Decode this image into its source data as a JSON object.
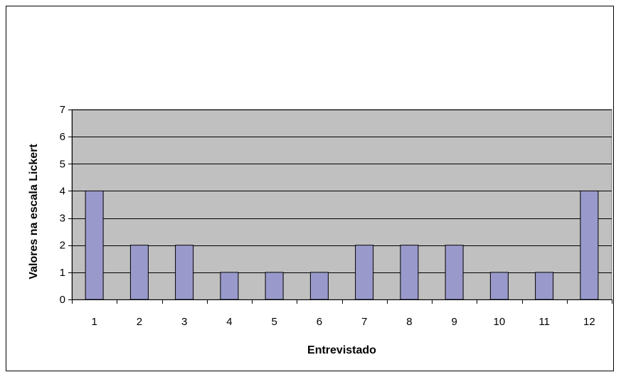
{
  "chart_data": {
    "type": "bar",
    "categories": [
      "1",
      "2",
      "3",
      "4",
      "5",
      "6",
      "7",
      "8",
      "9",
      "10",
      "11",
      "12"
    ],
    "values": [
      4,
      2,
      2,
      1,
      1,
      1,
      2,
      2,
      2,
      1,
      1,
      4
    ],
    "xlabel": "Entrevistado",
    "ylabel": "Valores na escala Lickert",
    "ylim": [
      0,
      7
    ],
    "yticks": [
      "0",
      "1",
      "2",
      "3",
      "4",
      "5",
      "6",
      "7"
    ],
    "grid": true,
    "legend": "none",
    "colors": {
      "bar_fill": "#9999cc",
      "bar_stroke": "#000000",
      "plot_background": "#c0c0c0",
      "gridline": "#000000"
    }
  }
}
